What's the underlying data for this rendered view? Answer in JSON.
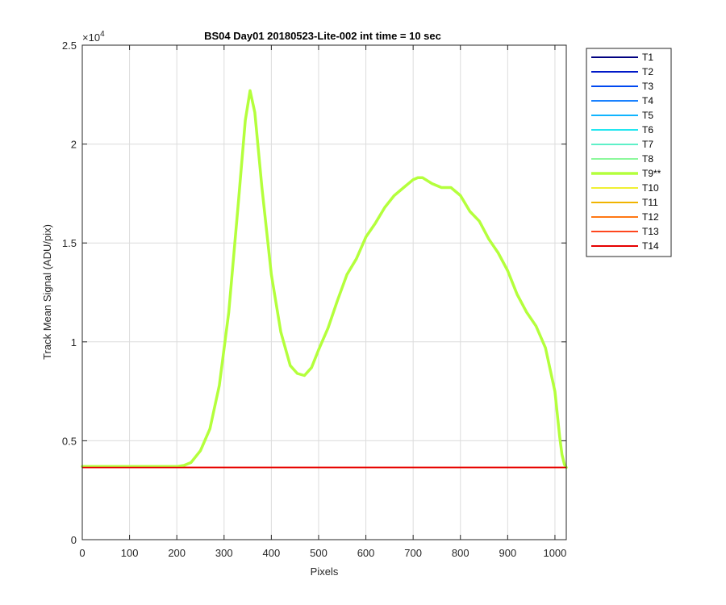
{
  "chart_data": {
    "type": "line",
    "title": "BS04 Day01 20180523-Lite-002 int time = 10 sec",
    "xlabel": "Pixels",
    "ylabel": "Track Mean Signal (ADU/pix)",
    "y_exponent_label": "×10",
    "y_exponent": "4",
    "xlim": [
      0,
      1024
    ],
    "ylim": [
      0,
      25000
    ],
    "xticks": [
      0,
      100,
      200,
      300,
      400,
      500,
      600,
      700,
      800,
      900,
      1000
    ],
    "xtick_labels": [
      "0",
      "100",
      "200",
      "300",
      "400",
      "500",
      "600",
      "700",
      "800",
      "900",
      "1000"
    ],
    "yticks": [
      0,
      5000,
      10000,
      15000,
      20000,
      25000
    ],
    "ytick_labels": [
      "0",
      "0.5",
      "1",
      "1.5",
      "2",
      "2.5"
    ],
    "grid": true,
    "legend_position": "outside-top-right",
    "baseline": {
      "x": [
        0,
        1024
      ],
      "y": [
        3650,
        3650
      ]
    },
    "highlight_series": "T9**",
    "series": [
      {
        "name": "T1",
        "color": "#000080"
      },
      {
        "name": "T2",
        "color": "#0019c8"
      },
      {
        "name": "T3",
        "color": "#0048f0"
      },
      {
        "name": "T4",
        "color": "#1a82ff"
      },
      {
        "name": "T5",
        "color": "#10b4ff"
      },
      {
        "name": "T6",
        "color": "#22e6f0"
      },
      {
        "name": "T7",
        "color": "#5ef0c8"
      },
      {
        "name": "T8",
        "color": "#8cf89c"
      },
      {
        "name": "T9**",
        "color": "#b4ff3c",
        "x": [
          0,
          100,
          200,
          215,
          230,
          250,
          270,
          290,
          310,
          330,
          345,
          355,
          365,
          380,
          400,
          420,
          440,
          455,
          470,
          485,
          500,
          520,
          540,
          560,
          580,
          600,
          620,
          640,
          660,
          680,
          700,
          710,
          720,
          740,
          760,
          780,
          800,
          820,
          840,
          860,
          880,
          900,
          920,
          940,
          960,
          980,
          1000,
          1010,
          1015,
          1020,
          1024
        ],
        "y": [
          3700,
          3700,
          3700,
          3750,
          3900,
          4500,
          5600,
          7800,
          11500,
          17000,
          21200,
          22700,
          21600,
          17800,
          13400,
          10500,
          8800,
          8400,
          8300,
          8700,
          9600,
          10700,
          12100,
          13400,
          14200,
          15300,
          16000,
          16800,
          17400,
          17800,
          18200,
          18300,
          18300,
          18000,
          17800,
          17800,
          17400,
          16600,
          16100,
          15200,
          14500,
          13600,
          12400,
          11500,
          10800,
          9700,
          7500,
          5200,
          4300,
          3800,
          3650
        ]
      },
      {
        "name": "T10",
        "color": "#f0f032"
      },
      {
        "name": "T11",
        "color": "#f0b400"
      },
      {
        "name": "T12",
        "color": "#ff7814"
      },
      {
        "name": "T13",
        "color": "#ff461e"
      },
      {
        "name": "T14",
        "color": "#e60000"
      }
    ]
  }
}
